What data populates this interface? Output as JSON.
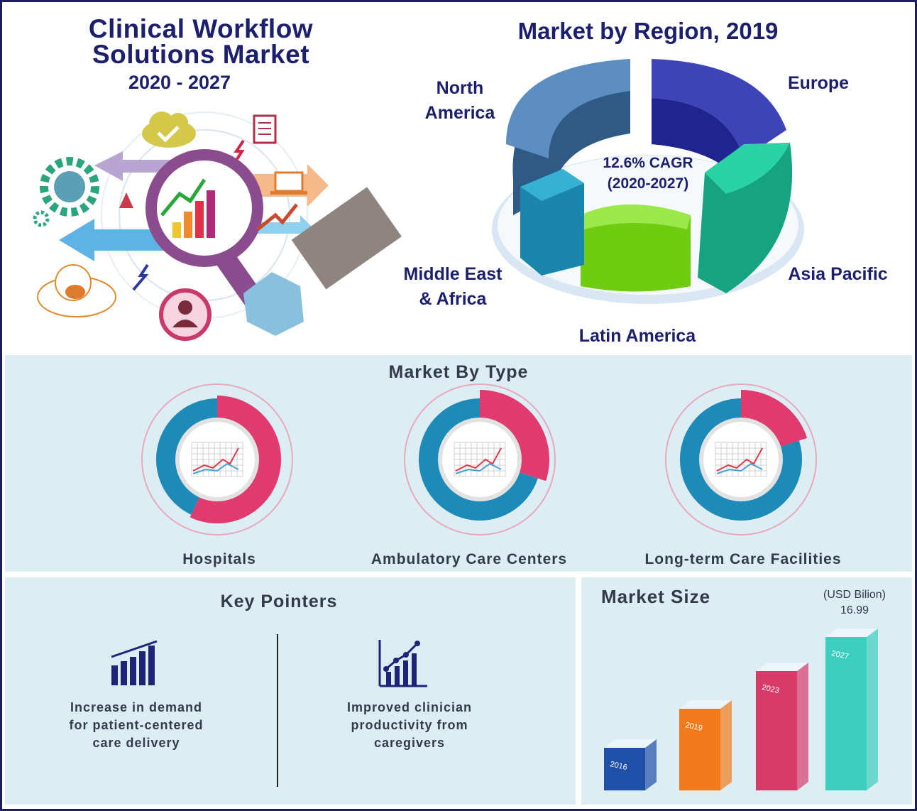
{
  "header": {
    "title_line1": "Clinical Workflow",
    "title_line2": "Solutions Market",
    "years": "2020 - 2027"
  },
  "region": {
    "title": "Market by Region, 2019",
    "cagr_line1": "12.6% CAGR",
    "cagr_line2": "(2020-2027)",
    "labels": {
      "north_america_1": "North",
      "north_america_2": "America",
      "europe": "Europe",
      "asia_pacific": "Asia Pacific",
      "latin_america": "Latin America",
      "mea_1": "Middle East",
      "mea_2": "& Africa"
    },
    "colors": {
      "north_america": "#3e6e9f",
      "europe": "#2a2f9e",
      "asia_pacific": "#12b08a",
      "latin_america": "#7ed321",
      "mea": "#1f8fb1"
    }
  },
  "type_section": {
    "title": "Market By Type",
    "items": [
      {
        "label": "Hospitals",
        "share": 0.57
      },
      {
        "label": "Ambulatory Care Centers",
        "share": 0.3
      },
      {
        "label": "Long-term Care Facilities",
        "share": 0.2
      }
    ],
    "colors": {
      "primary": "#e03a6e",
      "secondary": "#1e8ab7"
    }
  },
  "pointers": {
    "title": "Key Pointers",
    "items": [
      {
        "line1": "Increase in demand",
        "line2": "for patient-centered",
        "line3": "care delivery",
        "icon": "bar-chart-icon"
      },
      {
        "line1": "Improved clinician",
        "line2": "productivity from",
        "line3": "caregivers",
        "icon": "growth-chart-icon"
      }
    ]
  },
  "market_size": {
    "title": "Market Size",
    "unit": "(USD Bilion)",
    "value_label": "16.99"
  },
  "chart_data": [
    {
      "type": "bar",
      "title": "Market Size",
      "ylabel": "(USD Bilion)",
      "categories": [
        "2016",
        "2019",
        "2023",
        "2027"
      ],
      "values": [
        null,
        null,
        null,
        16.99
      ],
      "colors": [
        "#1f4fa8",
        "#f27a1a",
        "#d83a6a",
        "#3ccfc0"
      ]
    },
    {
      "type": "pie",
      "title": "Market by Region, 2019",
      "categories": [
        "North America",
        "Europe",
        "Asia Pacific",
        "Latin America",
        "Middle East & Africa"
      ],
      "values": [
        null,
        null,
        null,
        null,
        null
      ]
    }
  ]
}
